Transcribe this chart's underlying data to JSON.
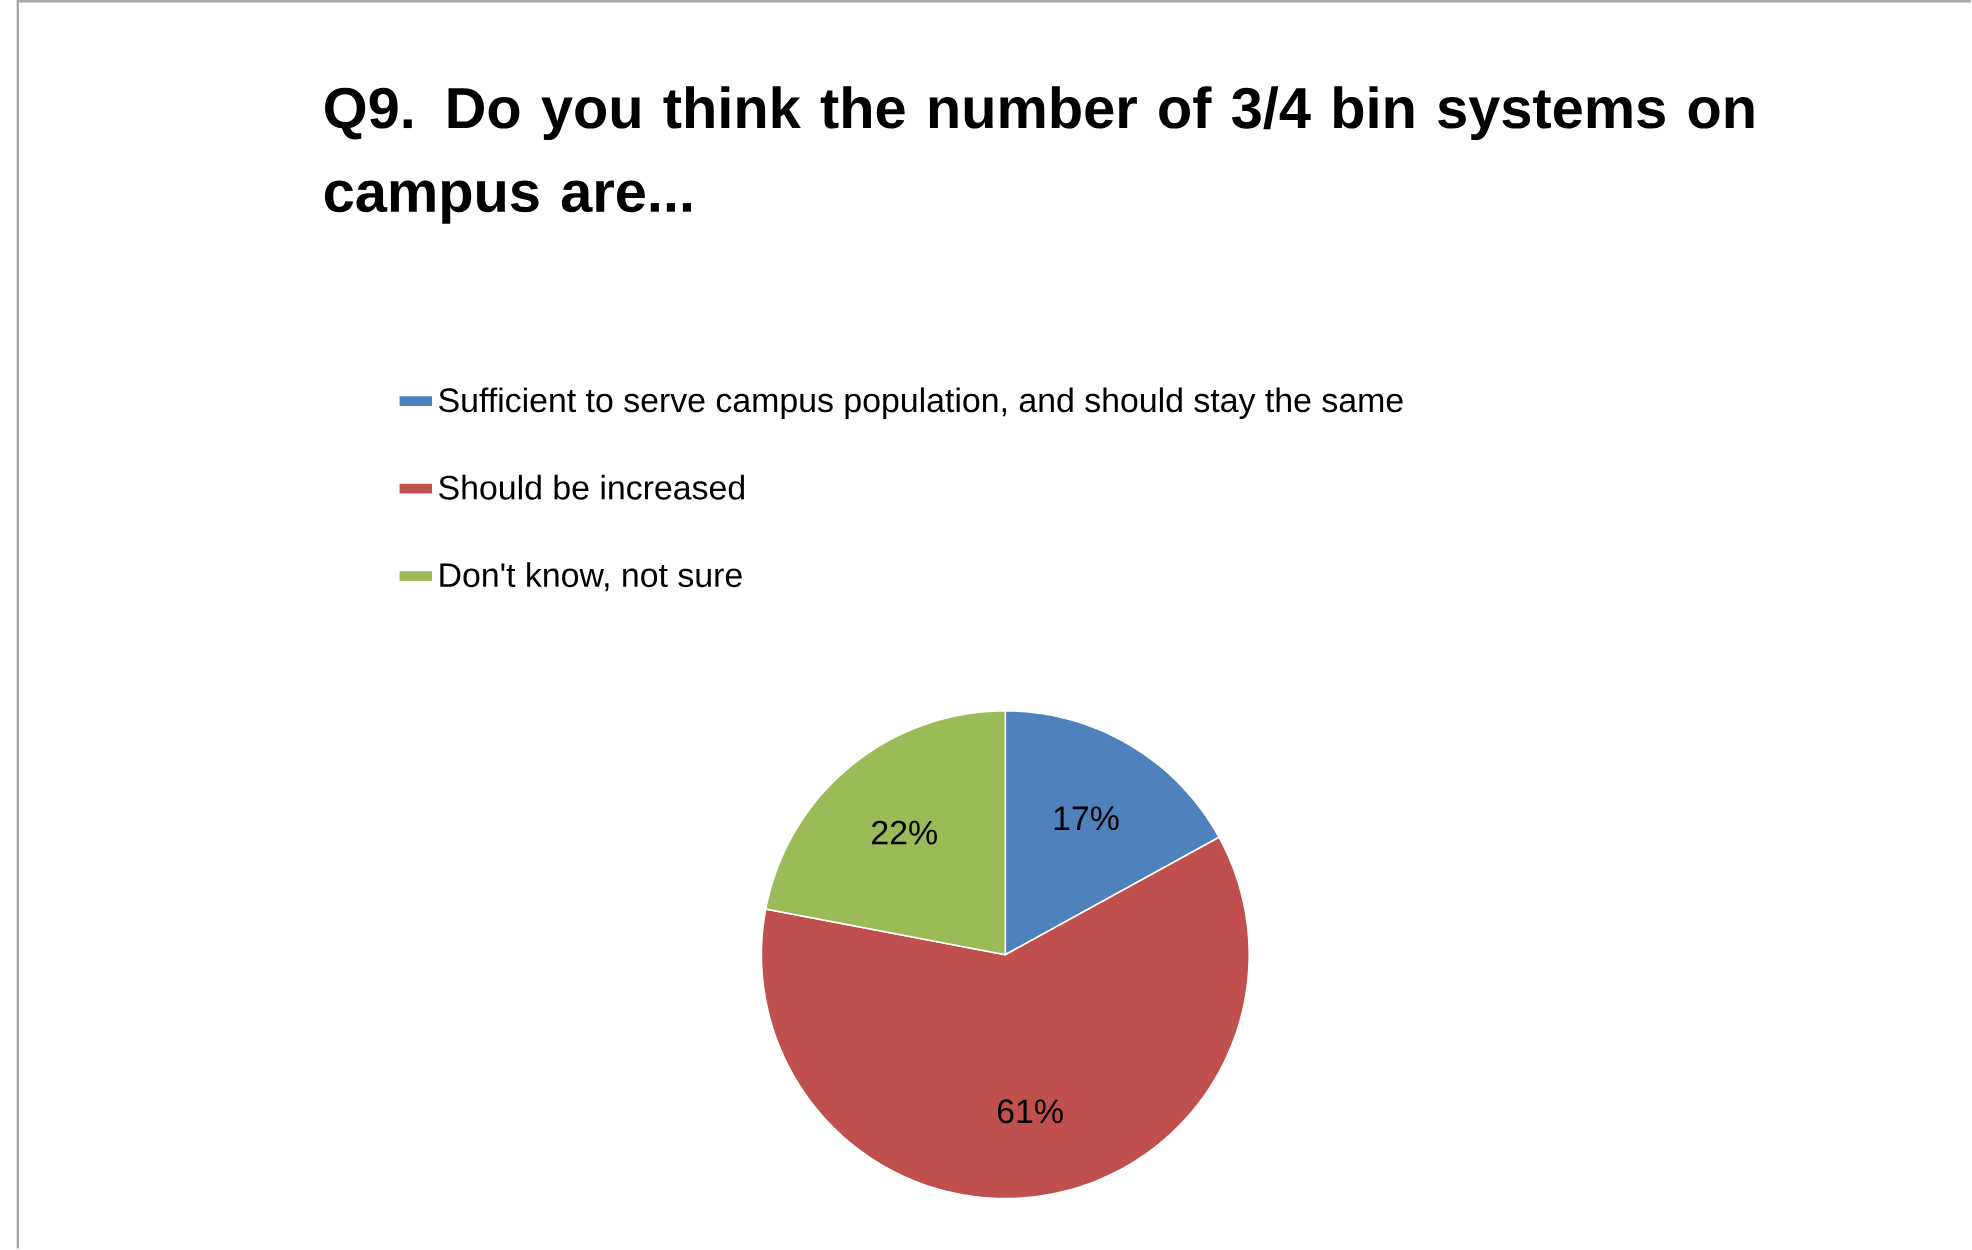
{
  "chart_data": {
    "type": "pie",
    "title": "Q9. Do you think the number of 3/4 bin systems on campus are...",
    "categories": [
      "Sufficient to serve campus population, and should stay the same",
      "Should be increased",
      "Don't know, not sure"
    ],
    "values": [
      17,
      61,
      22
    ],
    "colors": [
      "#4f81bd",
      "#c0504d",
      "#9bbb59"
    ],
    "value_labels": [
      "17%",
      "61%",
      "22%"
    ],
    "legend": "top"
  }
}
